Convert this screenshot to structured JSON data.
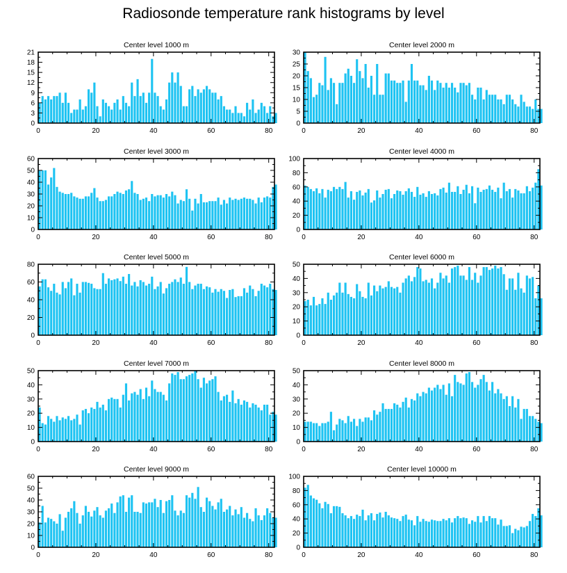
{
  "figure_title": "Radiosonde temperature rank histograms by level",
  "colors": {
    "bar": "#1ec3f2",
    "axis": "#000000",
    "background": "#ffffff"
  },
  "chart_data": [
    {
      "type": "bar",
      "title": "Center level 1000 m",
      "xlabel": "",
      "ylabel": "",
      "xlim": [
        0,
        82
      ],
      "ylim": [
        0,
        21
      ],
      "xticks": [
        0,
        20,
        40,
        60,
        80
      ],
      "yticks": [
        0,
        3,
        6,
        9,
        12,
        15,
        18,
        21
      ],
      "values": [
        6,
        8,
        7,
        8,
        7,
        8,
        8,
        9,
        6,
        9,
        6,
        3,
        4,
        4,
        7,
        4,
        5,
        10,
        9,
        12,
        5,
        2,
        7,
        6,
        5,
        4,
        6,
        7,
        4,
        8,
        6,
        5,
        12,
        8,
        13,
        8,
        9,
        6,
        9,
        19,
        9,
        8,
        5,
        4,
        7,
        12,
        15,
        12,
        15,
        11,
        5,
        5,
        10,
        11,
        8,
        10,
        9,
        10,
        11,
        10,
        9,
        9,
        7,
        8,
        5,
        4,
        4,
        3,
        5,
        3,
        3,
        2,
        6,
        4,
        7,
        3,
        4,
        6,
        5,
        3,
        5,
        2,
        3
      ],
      "bar_color": "#1ec3f2"
    },
    {
      "type": "bar",
      "title": "Center level 2000 m",
      "xlabel": "",
      "ylabel": "",
      "xlim": [
        0,
        82
      ],
      "ylim": [
        0,
        30
      ],
      "xticks": [
        0,
        20,
        40,
        60,
        80
      ],
      "yticks": [
        0,
        5,
        10,
        15,
        20,
        25,
        30
      ],
      "values": [
        30,
        22,
        19,
        11,
        12,
        17,
        16,
        28,
        14,
        19,
        17,
        8,
        17,
        17,
        21,
        23,
        20,
        17,
        27,
        22,
        19,
        25,
        15,
        20,
        12,
        25,
        12,
        12,
        21,
        21,
        18,
        18,
        17,
        17,
        18,
        9,
        18,
        25,
        18,
        18,
        16,
        16,
        14,
        20,
        18,
        14,
        18,
        17,
        15,
        17,
        15,
        17,
        15,
        13,
        17,
        17,
        16,
        17,
        12,
        10,
        15,
        15,
        10,
        14,
        12,
        12,
        12,
        10,
        10,
        8,
        12,
        12,
        10,
        8,
        7,
        12,
        9,
        7,
        7,
        6,
        10,
        6,
        6
      ],
      "bar_color": "#1ec3f2"
    },
    {
      "type": "bar",
      "title": "Center level 3000 m",
      "xlabel": "",
      "ylabel": "",
      "xlim": [
        0,
        82
      ],
      "ylim": [
        0,
        60
      ],
      "xticks": [
        0,
        20,
        40,
        60,
        80
      ],
      "yticks": [
        0,
        10,
        20,
        30,
        40,
        50,
        60
      ],
      "values": [
        50,
        50,
        50,
        38,
        44,
        52,
        36,
        32,
        31,
        30,
        30,
        31,
        28,
        27,
        26,
        26,
        28,
        28,
        31,
        35,
        27,
        24,
        24,
        25,
        28,
        28,
        30,
        32,
        31,
        30,
        33,
        34,
        41,
        31,
        30,
        25,
        26,
        27,
        24,
        30,
        28,
        29,
        29,
        27,
        30,
        28,
        32,
        29,
        22,
        25,
        24,
        34,
        26,
        16,
        26,
        22,
        30,
        23,
        23,
        24,
        24,
        24,
        27,
        21,
        25,
        22,
        27,
        25,
        26,
        25,
        26,
        27,
        26,
        26,
        25,
        22,
        27,
        23,
        27,
        28,
        27,
        36,
        38
      ],
      "bar_color": "#1ec3f2"
    },
    {
      "type": "bar",
      "title": "Center level 4000 m",
      "xlabel": "",
      "ylabel": "",
      "xlim": [
        0,
        82
      ],
      "ylim": [
        0,
        100
      ],
      "xticks": [
        0,
        20,
        40,
        60,
        80
      ],
      "yticks": [
        0,
        20,
        40,
        60,
        80,
        100
      ],
      "values": [
        62,
        60,
        57,
        54,
        58,
        51,
        57,
        45,
        56,
        54,
        60,
        57,
        60,
        57,
        67,
        45,
        54,
        42,
        53,
        55,
        48,
        52,
        57,
        38,
        41,
        55,
        45,
        50,
        56,
        57,
        44,
        50,
        55,
        54,
        49,
        54,
        58,
        53,
        46,
        60,
        49,
        51,
        46,
        54,
        50,
        51,
        48,
        57,
        59,
        52,
        66,
        53,
        53,
        61,
        50,
        56,
        63,
        51,
        61,
        37,
        59,
        53,
        56,
        57,
        62,
        56,
        53,
        59,
        44,
        66,
        54,
        57,
        45,
        57,
        55,
        51,
        51,
        61,
        54,
        59,
        66,
        85,
        62
      ],
      "bar_color": "#1ec3f2"
    },
    {
      "type": "bar",
      "title": "Center level 5000 m",
      "xlabel": "",
      "ylabel": "",
      "xlim": [
        0,
        82
      ],
      "ylim": [
        0,
        80
      ],
      "xticks": [
        0,
        20,
        40,
        60,
        80
      ],
      "yticks": [
        0,
        20,
        40,
        60,
        80
      ],
      "values": [
        55,
        63,
        63,
        54,
        50,
        58,
        48,
        46,
        60,
        53,
        60,
        64,
        45,
        58,
        48,
        60,
        60,
        59,
        58,
        53,
        52,
        52,
        70,
        58,
        64,
        62,
        63,
        64,
        61,
        66,
        58,
        69,
        56,
        60,
        55,
        62,
        60,
        56,
        58,
        66,
        52,
        55,
        60,
        47,
        53,
        58,
        60,
        63,
        60,
        65,
        58,
        77,
        60,
        52,
        56,
        58,
        58,
        52,
        55,
        54,
        48,
        52,
        49,
        52,
        50,
        42,
        51,
        52,
        43,
        44,
        44,
        53,
        48,
        56,
        52,
        44,
        50,
        58,
        56,
        54,
        58,
        52,
        51
      ],
      "bar_color": "#1ec3f2"
    },
    {
      "type": "bar",
      "title": "Center level 6000 m",
      "xlabel": "",
      "ylabel": "",
      "xlim": [
        0,
        82
      ],
      "ylim": [
        0,
        50
      ],
      "xticks": [
        0,
        20,
        40,
        60,
        80
      ],
      "yticks": [
        0,
        10,
        20,
        30,
        40,
        50
      ],
      "values": [
        24,
        25,
        21,
        27,
        21,
        22,
        26,
        22,
        30,
        25,
        28,
        30,
        37,
        30,
        37,
        29,
        27,
        26,
        36,
        31,
        27,
        26,
        37,
        28,
        35,
        31,
        35,
        33,
        34,
        38,
        34,
        33,
        34,
        30,
        37,
        40,
        42,
        38,
        41,
        48,
        47,
        38,
        39,
        37,
        40,
        33,
        37,
        44,
        40,
        42,
        37,
        47,
        48,
        49,
        42,
        42,
        39,
        48,
        39,
        44,
        37,
        42,
        48,
        48,
        46,
        47,
        49,
        47,
        48,
        43,
        32,
        40,
        40,
        32,
        44,
        33,
        30,
        42,
        40,
        41,
        26,
        35,
        26
      ],
      "bar_color": "#1ec3f2"
    },
    {
      "type": "bar",
      "title": "Center level 7000 m",
      "xlabel": "",
      "ylabel": "",
      "xlim": [
        0,
        82
      ],
      "ylim": [
        0,
        50
      ],
      "xticks": [
        0,
        20,
        40,
        60,
        80
      ],
      "yticks": [
        0,
        10,
        20,
        30,
        40,
        50
      ],
      "values": [
        24,
        13,
        12,
        18,
        16,
        14,
        18,
        15,
        17,
        16,
        18,
        15,
        16,
        19,
        12,
        22,
        23,
        20,
        24,
        23,
        28,
        24,
        26,
        22,
        30,
        31,
        30,
        30,
        24,
        33,
        41,
        29,
        34,
        35,
        33,
        37,
        30,
        38,
        32,
        43,
        37,
        35,
        35,
        33,
        29,
        41,
        48,
        47,
        49,
        44,
        44,
        46,
        47,
        48,
        50,
        44,
        38,
        45,
        41,
        43,
        44,
        46,
        35,
        29,
        32,
        33,
        28,
        36,
        27,
        30,
        26,
        29,
        28,
        24,
        27,
        26,
        24,
        22,
        26,
        26,
        19,
        21,
        19
      ],
      "bar_color": "#1ec3f2"
    },
    {
      "type": "bar",
      "title": "Center level 8000 m",
      "xlabel": "",
      "ylabel": "",
      "xlim": [
        0,
        82
      ],
      "ylim": [
        0,
        50
      ],
      "xticks": [
        0,
        20,
        40,
        60,
        80
      ],
      "yticks": [
        0,
        10,
        20,
        30,
        40,
        50
      ],
      "values": [
        14,
        14,
        14,
        13,
        13,
        11,
        13,
        13,
        14,
        21,
        8,
        12,
        16,
        15,
        13,
        18,
        14,
        16,
        11,
        16,
        14,
        17,
        17,
        15,
        22,
        19,
        21,
        27,
        23,
        23,
        23,
        27,
        26,
        24,
        28,
        31,
        24,
        30,
        29,
        34,
        32,
        35,
        34,
        38,
        36,
        38,
        40,
        37,
        40,
        33,
        41,
        32,
        47,
        42,
        41,
        40,
        48,
        49,
        42,
        38,
        40,
        44,
        47,
        42,
        36,
        42,
        34,
        37,
        34,
        30,
        32,
        25,
        32,
        24,
        30,
        16,
        23,
        23,
        18,
        18,
        16,
        14,
        13
      ],
      "bar_color": "#1ec3f2"
    },
    {
      "type": "bar",
      "title": "Center level 9000 m",
      "xlabel": "",
      "ylabel": "",
      "xlim": [
        0,
        82
      ],
      "ylim": [
        0,
        60
      ],
      "xticks": [
        0,
        20,
        40,
        60,
        80
      ],
      "yticks": [
        0,
        10,
        20,
        30,
        40,
        50,
        60
      ],
      "values": [
        21,
        35,
        21,
        25,
        24,
        22,
        20,
        28,
        14,
        25,
        30,
        33,
        39,
        29,
        20,
        27,
        35,
        30,
        26,
        31,
        34,
        27,
        25,
        31,
        33,
        37,
        29,
        38,
        43,
        44,
        30,
        42,
        44,
        30,
        30,
        29,
        38,
        37,
        38,
        38,
        41,
        34,
        40,
        29,
        39,
        40,
        44,
        31,
        27,
        31,
        29,
        44,
        42,
        46,
        41,
        51,
        34,
        30,
        42,
        39,
        35,
        32,
        38,
        41,
        30,
        32,
        35,
        27,
        32,
        28,
        34,
        25,
        29,
        24,
        22,
        33,
        27,
        23,
        27,
        33,
        29,
        25,
        25
      ],
      "bar_color": "#1ec3f2"
    },
    {
      "type": "bar",
      "title": "Center level 10000 m",
      "xlabel": "",
      "ylabel": "",
      "xlim": [
        0,
        82
      ],
      "ylim": [
        0,
        100
      ],
      "xticks": [
        0,
        20,
        40,
        60,
        80
      ],
      "yticks": [
        0,
        20,
        40,
        60,
        80,
        100
      ],
      "values": [
        84,
        88,
        73,
        69,
        67,
        62,
        55,
        64,
        61,
        48,
        58,
        58,
        57,
        48,
        45,
        41,
        44,
        40,
        46,
        44,
        53,
        38,
        45,
        48,
        38,
        47,
        49,
        42,
        50,
        45,
        42,
        41,
        40,
        37,
        44,
        46,
        39,
        38,
        31,
        44,
        36,
        40,
        37,
        36,
        39,
        38,
        37,
        37,
        40,
        38,
        41,
        35,
        41,
        44,
        41,
        42,
        41,
        33,
        38,
        36,
        44,
        35,
        44,
        37,
        44,
        41,
        41,
        32,
        39,
        30,
        30,
        31,
        20,
        26,
        24,
        29,
        28,
        30,
        37,
        47,
        44,
        55,
        45
      ],
      "bar_color": "#1ec3f2"
    }
  ]
}
